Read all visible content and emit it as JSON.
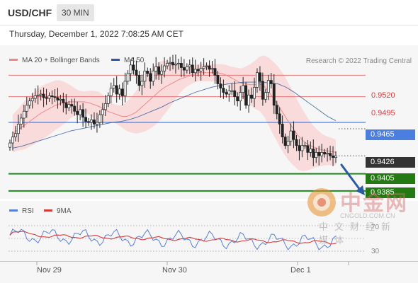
{
  "header": {
    "symbol": "USD/CHF",
    "timeframe": "30 MIN",
    "timestamp": "Thursday, December 1, 2022 7:08:25 AM CET"
  },
  "legend": {
    "ma20_label": "MA 20 + Bollinger Bands",
    "ma50_label": "MA 50",
    "ma20_color": "#ec8a8a",
    "ma50_color": "#2f5a9e",
    "attribution": "Research © 2022 Trading Central"
  },
  "rsi_legend": {
    "rsi_label": "RSI",
    "ma_label": "9MA",
    "rsi_color": "#5a7fd6",
    "ma_color": "#d33b3b"
  },
  "colors": {
    "resistance": "#e87878",
    "pivot": "#4a7fe0",
    "support": "#1a8a1a",
    "support_tag": "#237a12",
    "last_tag": "#333333",
    "arrow": "#2c5aa0",
    "candle_up": "#ffffff",
    "candle_down": "#222222",
    "band_fill": "#f9d6d6"
  },
  "chart_data": {
    "type": "candlestick",
    "instrument": "USD/CHF",
    "interval": "30 MIN",
    "ylim": [
      0.9375,
      0.9555
    ],
    "x_ticks": [
      "Nov 29",
      "Nov 30",
      "Dec 1"
    ],
    "levels": {
      "resistances": [
        "0.9520",
        "0.9495"
      ],
      "pivot": "0.9465",
      "last": "0.9426",
      "supports": [
        "0.9405",
        "0.9385"
      ]
    },
    "ohlc_close": [
      0.9441,
      0.9448,
      0.9452,
      0.9463,
      0.947,
      0.9478,
      0.9485,
      0.949,
      0.9493,
      0.9496,
      0.9497,
      0.9498,
      0.9494,
      0.9493,
      0.9496,
      0.9495,
      0.9494,
      0.9491,
      0.9492,
      0.9488,
      0.9482,
      0.9486,
      0.9484,
      0.9478,
      0.9474,
      0.948,
      0.9471,
      0.9466,
      0.9465,
      0.9468,
      0.9463,
      0.9465,
      0.9474,
      0.948,
      0.9487,
      0.9496,
      0.9505,
      0.9508,
      0.9498,
      0.9504,
      0.9496,
      0.9513,
      0.9522,
      0.9532,
      0.9526,
      0.952,
      0.9508,
      0.9513,
      0.9525,
      0.9522,
      0.9513,
      0.9525,
      0.953,
      0.9521,
      0.9525,
      0.9531,
      0.9534,
      0.9535,
      0.9532,
      0.9533,
      0.9534,
      0.9529,
      0.9526,
      0.953,
      0.9532,
      0.9523,
      0.9527,
      0.9525,
      0.9528,
      0.953,
      0.9531,
      0.9527,
      0.9528,
      0.952,
      0.951,
      0.9505,
      0.95,
      0.9498,
      0.9502,
      0.9502,
      0.9495,
      0.949,
      0.95,
      0.9508,
      0.9485,
      0.9497,
      0.9493,
      0.9506,
      0.9523,
      0.9513,
      0.9492,
      0.95,
      0.9514,
      0.951,
      0.9485,
      0.9475,
      0.9463,
      0.9448,
      0.9438,
      0.9443,
      0.9455,
      0.9445,
      0.9438,
      0.9432,
      0.9438,
      0.9438,
      0.943,
      0.9434,
      0.9424,
      0.943,
      0.9426,
      0.943,
      0.9428,
      0.9429,
      0.9426,
      0.9424,
      0.9426
    ],
    "ma20": [
      0.9452,
      0.9456,
      0.946,
      0.9464,
      0.9468,
      0.9472,
      0.9476,
      0.9479,
      0.9482,
      0.9485,
      0.9487,
      0.9488,
      0.9489,
      0.9489,
      0.9489,
      0.9489,
      0.9488,
      0.9486,
      0.9484,
      0.9481,
      0.9478,
      0.9476,
      0.9474,
      0.9472,
      0.9472,
      0.9474,
      0.9477,
      0.9482,
      0.9487,
      0.9492,
      0.9497,
      0.9502,
      0.9506,
      0.9509,
      0.9512,
      0.9515,
      0.9517,
      0.9519,
      0.9521,
      0.9523,
      0.9523,
      0.9523,
      0.9523,
      0.9523,
      0.9522,
      0.952,
      0.9517,
      0.9514,
      0.9511,
      0.951,
      0.9509,
      0.9509,
      0.951,
      0.9507,
      0.95,
      0.9492,
      0.9484,
      0.9475,
      0.9466,
      0.9458,
      0.945,
      0.9444,
      0.944,
      0.9437,
      0.9435,
      0.9433,
      0.9432,
      0.9431,
      0.943
    ],
    "ma50": [
      0.9435,
      0.9437,
      0.944,
      0.9443,
      0.9446,
      0.9449,
      0.9452,
      0.9455,
      0.9457,
      0.9459,
      0.9461,
      0.9463,
      0.9465,
      0.9466,
      0.9468,
      0.9471,
      0.9475,
      0.9479,
      0.9483,
      0.9488,
      0.9492,
      0.9496,
      0.95,
      0.9503,
      0.9506,
      0.9508,
      0.951,
      0.9511,
      0.9512,
      0.9512,
      0.9512,
      0.9511,
      0.951,
      0.9506,
      0.95,
      0.9493,
      0.9486,
      0.9479,
      0.9472,
      0.9467
    ]
  },
  "rsi_panel": {
    "level_70": "70",
    "level_30": "30"
  },
  "x_axis": {
    "label_1": "Nov 29",
    "label_2": "Nov 30",
    "label_3": "Dec 1"
  },
  "watermark": {
    "text": "中金网",
    "domain": "CNGOLD.COM.CN",
    "subtext": "中文财经新媒体"
  }
}
